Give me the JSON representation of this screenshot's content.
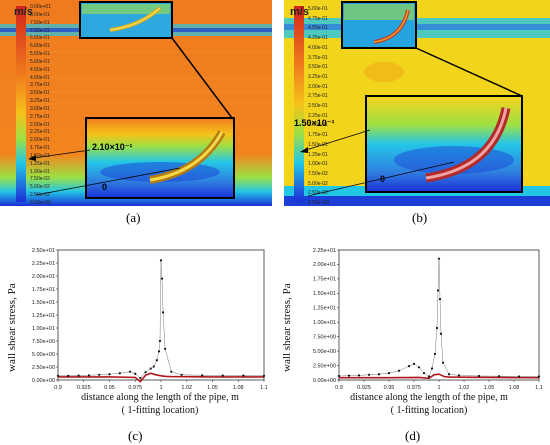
{
  "figure": {
    "panel_a": {
      "label": "(a)",
      "unit": "m/s",
      "annotation_max": "2.10×10⁻¹",
      "annotation_zero": "0",
      "legend": [
        "0.00e+01",
        "8.00e-01",
        "7.50e-01",
        "7.00e-01",
        "6.50e-01",
        "6.00e-01",
        "5.50e-01",
        "5.00e-01",
        "4.50e-01",
        "4.00e-01",
        "3.75e-01",
        "3.50e-01",
        "3.25e-01",
        "3.00e-01",
        "2.75e-01",
        "2.50e-01",
        "2.25e-01",
        "2.00e-01",
        "1.75e-01",
        "1.50e-01",
        "1.25e-01",
        "1.00e-01",
        "7.50e-02",
        "5.00e-02",
        "2.50e-02",
        "0.00e+00"
      ]
    },
    "panel_b": {
      "label": "(b)",
      "unit": "m/s",
      "annotation_max": "1.50×10⁻¹",
      "annotation_zero": "0",
      "legend": [
        "5.00e-01",
        "4.75e-01",
        "4.50e-01",
        "4.25e-01",
        "4.00e-01",
        "3.75e-01",
        "3.50e-01",
        "3.25e-01",
        "3.00e-01",
        "2.75e-01",
        "2.50e-01",
        "2.25e-01",
        "2.00e-01",
        "1.75e-01",
        "1.50e-01",
        "1.25e-01",
        "1.00e-01",
        "7.50e-02",
        "5.00e-02",
        "2.50e-02",
        "0.00e+00"
      ]
    },
    "panel_c": {
      "label": "(c)"
    },
    "panel_d": {
      "label": "(d)"
    },
    "colors": {
      "hot": "#f07a1e",
      "warm": "#f6b21a",
      "cold": "#1b3fd6",
      "cyan": "#23c7e6",
      "series_dots": "#111111",
      "series_red": "#b0161a"
    }
  },
  "chart_data": [
    {
      "type": "scatter",
      "title": "",
      "xlabel": "distance along the length of the pipe, m",
      "xlabel2": "( 1-fitting location)",
      "ylabel": "wall shear stress, Pa",
      "xlim": [
        0.9,
        1.1
      ],
      "ylim": [
        0,
        25
      ],
      "xticks": [
        "0.9",
        "0.925",
        "0.95",
        "0.975",
        "1",
        "1.02",
        "1.05",
        "1.08",
        "1.1"
      ],
      "yticks": [
        "0.00e+00",
        "2.50e+00",
        "5.00e+00",
        "7.50e+00",
        "1.00e+01",
        "1.25e+01",
        "1.50e+01",
        "1.75e+01",
        "2.00e+01",
        "2.25e+01",
        "2.50e+01"
      ],
      "series": [
        {
          "x": [
            0.9,
            0.91,
            0.92,
            0.93,
            0.94,
            0.95,
            0.96,
            0.97,
            0.975,
            0.98,
            0.985,
            0.99,
            0.993,
            0.996,
            0.998,
            0.999,
            1.0,
            1.001,
            1.002,
            1.004,
            1.01,
            1.02,
            1.04,
            1.06,
            1.08,
            1.1
          ],
          "y": [
            0.8,
            0.8,
            0.85,
            0.9,
            1.0,
            1.1,
            1.3,
            1.6,
            1.2,
            0.4,
            1.5,
            2.2,
            2.6,
            3.8,
            5.5,
            7.5,
            23.0,
            19.5,
            13.0,
            6.0,
            1.6,
            1.0,
            0.9,
            0.85,
            0.85,
            0.8
          ]
        },
        {
          "x": [
            0.9,
            0.95,
            0.975,
            0.98,
            0.985,
            0.99,
            0.995,
            1.0,
            1.005,
            1.01,
            1.05,
            1.1
          ],
          "y": [
            0.6,
            0.6,
            0.5,
            -0.3,
            0.9,
            1.3,
            1.0,
            0.8,
            0.7,
            0.65,
            0.6,
            0.6
          ]
        }
      ]
    },
    {
      "type": "scatter",
      "title": "",
      "xlabel": "distance along the length of the pipe, m",
      "xlabel2": "( 1-fitting location)",
      "ylabel": "wall shear stress, Pa",
      "xlim": [
        0.9,
        1.1
      ],
      "ylim": [
        0,
        22.5
      ],
      "xticks": [
        "0.9",
        "0.925",
        "0.95",
        "0.975",
        "1",
        "1.02",
        "1.05",
        "1.08",
        "1.1"
      ],
      "yticks": [
        "0.00e+00",
        "2.50e+00",
        "5.00e+00",
        "7.50e+00",
        "1.00e+01",
        "1.25e+01",
        "1.50e+01",
        "1.75e+01",
        "2.00e+01",
        "2.25e+01"
      ],
      "series": [
        {
          "x": [
            0.9,
            0.91,
            0.92,
            0.93,
            0.94,
            0.95,
            0.96,
            0.97,
            0.975,
            0.98,
            0.985,
            0.99,
            0.993,
            0.996,
            0.998,
            0.999,
            1.0,
            1.001,
            1.002,
            1.004,
            1.01,
            1.02,
            1.04,
            1.06,
            1.08,
            1.1
          ],
          "y": [
            0.7,
            0.75,
            0.8,
            0.9,
            1.0,
            1.2,
            1.6,
            2.4,
            2.8,
            2.2,
            1.2,
            0.6,
            2.0,
            4.5,
            9.0,
            15.5,
            21.0,
            14.0,
            8.0,
            3.0,
            1.0,
            0.8,
            0.7,
            0.65,
            0.6,
            0.6
          ]
        },
        {
          "x": [
            0.9,
            0.95,
            0.98,
            0.99,
            0.995,
            1.0,
            1.005,
            1.01,
            1.05,
            1.1
          ],
          "y": [
            0.4,
            0.4,
            0.45,
            0.3,
            0.9,
            1.0,
            0.6,
            0.5,
            0.45,
            0.4
          ]
        }
      ]
    }
  ]
}
